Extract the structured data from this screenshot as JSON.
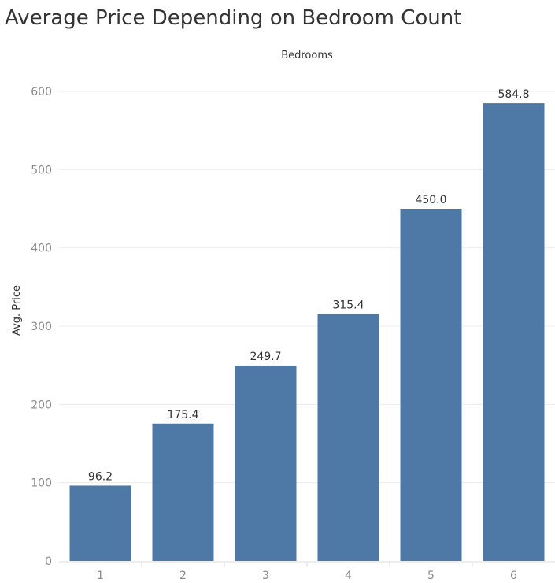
{
  "chart_data": {
    "type": "bar",
    "title": "Average Price Depending on Bedroom Count",
    "xlabel": "Bedrooms",
    "ylabel": "Avg. Price",
    "categories": [
      "1",
      "2",
      "3",
      "4",
      "5",
      "6"
    ],
    "values": [
      96.2,
      175.4,
      249.7,
      315.4,
      450.0,
      584.8
    ],
    "data_labels": [
      "96.2",
      "175.4",
      "249.7",
      "315.4",
      "450.0",
      "584.8"
    ],
    "ylim": [
      0,
      630
    ],
    "yticks": [
      0,
      100,
      200,
      300,
      400,
      500,
      600
    ],
    "grid": true,
    "legend": "none",
    "bar_color": "#4e79a7"
  }
}
